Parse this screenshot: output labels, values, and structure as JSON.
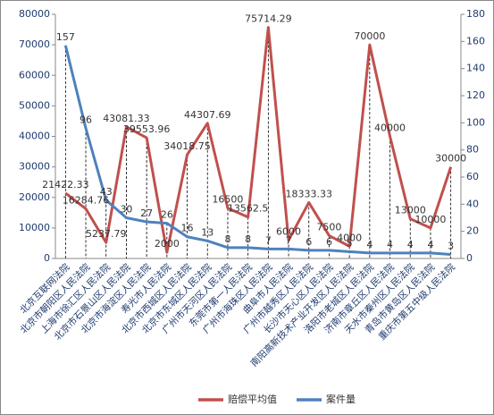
{
  "chart_data": {
    "type": "line",
    "categories": [
      "北京互联网法院",
      "北京市朝阳区人民法院",
      "上海市徐汇区人民法院",
      "北京市石景山区人民法院",
      "北京市海淀区人民法院",
      "寿光市人民法院",
      "北京市西城区人民法院",
      "北京市东城区人民法院",
      "广州市天河区人民法院",
      "东莞市第一人民法院",
      "广州市海珠区人民法院",
      "曲阜市人民法院",
      "广州市越秀区人民法院",
      "长沙市天心区人民法院",
      "南阳高新技术产业开发区人民法院",
      "洛阳市老城区人民法院",
      "济南市章丘区人民法院",
      "天水市秦州区人民法院",
      "青岛市黄岛区人民法院",
      "重庆市第五中级人民法院"
    ],
    "series": [
      {
        "name": "赔偿平均值",
        "color": "#c0504d",
        "values": [
          21422.33,
          16284.76,
          5237.79,
          43081.33,
          39553.96,
          2000,
          34018.75,
          44307.69,
          16500,
          13562.5,
          75714.29,
          6000,
          18333.33,
          7500,
          4000,
          70000,
          40000,
          13000,
          10000,
          30000
        ]
      },
      {
        "name": "案件量",
        "color": "#4f81bd",
        "axis": "y2",
        "values": [
          157,
          96,
          43,
          30,
          27,
          26,
          16,
          13,
          8,
          8,
          7,
          7,
          6,
          6,
          5,
          4,
          4,
          4,
          4,
          3
        ]
      }
    ],
    "ylim": [
      0,
      80000
    ],
    "yticks": [
      0,
      10000,
      20000,
      30000,
      40000,
      50000,
      60000,
      70000,
      80000
    ],
    "y2lim": [
      0,
      180
    ],
    "y2ticks": [
      0,
      20,
      40,
      60,
      80,
      100,
      120,
      140,
      160,
      180
    ],
    "legend": "bottom"
  }
}
